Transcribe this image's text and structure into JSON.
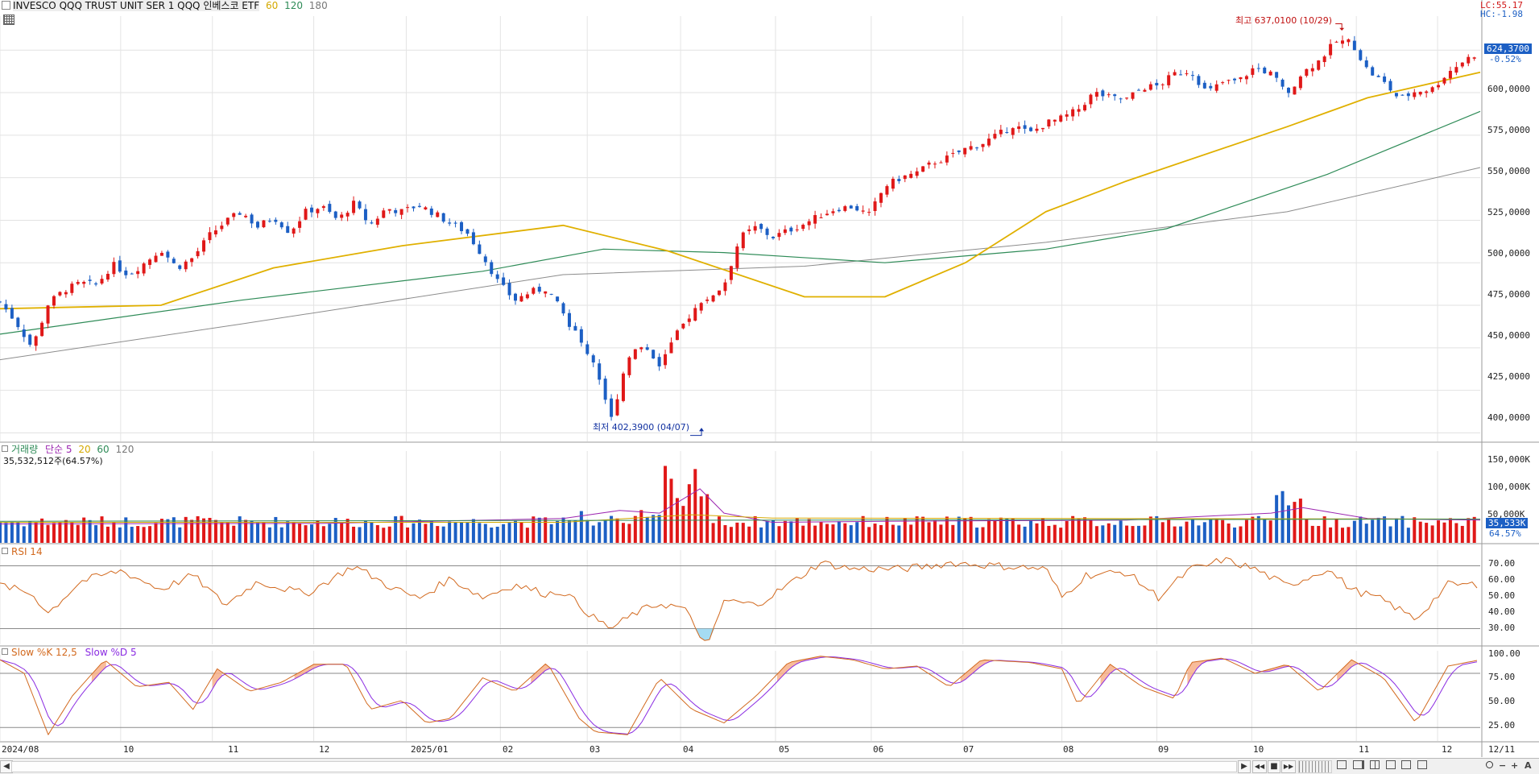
{
  "header": {
    "symbol": "INVESCO QQQ TRUST UNIT SER 1  QQQ 인베스코 ETF",
    "ma_60": "60",
    "ma_120": "120",
    "ma_180": "180",
    "lc": "LC:55.17",
    "hc": "HC:-1.98"
  },
  "price_panel": {
    "high_label": "최고 637,0100 (10/29)",
    "low_label": "최저 402,3900 (04/07)",
    "current_price": "624,3700",
    "current_change": "-0.52%",
    "y_ticks": [
      "600,0000",
      "575,0000",
      "550,0000",
      "525,0000",
      "500,0000",
      "475,0000",
      "450,0000",
      "425,0000",
      "400,0000"
    ],
    "colors": {
      "up": "#e01818",
      "down": "#1c5fc4",
      "ma60": "#e0b000",
      "ma120": "#2e8b57",
      "ma180": "#8c8c8c"
    }
  },
  "volume_panel": {
    "title": "거래량",
    "ma_label": "단순 5",
    "ma20": "20",
    "ma60": "60",
    "ma120": "120",
    "value_text": "35,532,512주(64.57%)",
    "y_ticks": [
      "150,000K",
      "100,000K",
      "50,000K"
    ],
    "current_flag": "35,533K",
    "current_pct": "64.57%"
  },
  "rsi_panel": {
    "title": "RSI 14",
    "y_ticks": [
      "70.00",
      "60.00",
      "50.00",
      "40.00",
      "30.00"
    ]
  },
  "stoch_panel": {
    "title_k": "Slow %K 12,5",
    "title_d": "Slow %D 5",
    "y_ticks": [
      "100.00",
      "75.00",
      "50.00",
      "25.00"
    ]
  },
  "x_axis": {
    "labels": [
      "2024/08",
      "10",
      "11",
      "12",
      "2025/01",
      "02",
      "03",
      "04",
      "05",
      "06",
      "07",
      "08",
      "09",
      "10",
      "11",
      "12",
      "12/11"
    ]
  },
  "toolbar": {
    "left_arrow": "◀",
    "right_arrow": "▶",
    "play": "▶",
    "rewind": "◀◀",
    "stop": "■",
    "forward": "▶▶",
    "zoom_out": "−",
    "zoom_in": "+",
    "auto": "A",
    "search_icon": "search-icon"
  },
  "chart_data": {
    "type": "candlestick",
    "date_range": [
      "2024/08",
      "12/11"
    ],
    "price_range": [
      395,
      645
    ],
    "high": {
      "value": 637.01,
      "date": "10/29"
    },
    "low": {
      "value": 402.39,
      "date": "04/07"
    },
    "last_close": 624.37,
    "close_path": [
      [
        0,
        477
      ],
      [
        20,
        465
      ],
      [
        40,
        450
      ],
      [
        60,
        476
      ],
      [
        80,
        484
      ],
      [
        100,
        488
      ],
      [
        120,
        487
      ],
      [
        140,
        499
      ],
      [
        160,
        493
      ],
      [
        180,
        500
      ],
      [
        200,
        508
      ],
      [
        220,
        497
      ],
      [
        240,
        503
      ],
      [
        260,
        516
      ],
      [
        280,
        524
      ],
      [
        300,
        530
      ],
      [
        320,
        521
      ],
      [
        340,
        527
      ],
      [
        360,
        518
      ],
      [
        380,
        530
      ],
      [
        400,
        533
      ],
      [
        420,
        525
      ],
      [
        440,
        535
      ],
      [
        460,
        522
      ],
      [
        480,
        532
      ],
      [
        500,
        530
      ],
      [
        520,
        534
      ],
      [
        540,
        529
      ],
      [
        560,
        523
      ],
      [
        580,
        518
      ],
      [
        600,
        504
      ],
      [
        620,
        488
      ],
      [
        640,
        478
      ],
      [
        660,
        483
      ],
      [
        680,
        485
      ],
      [
        700,
        470
      ],
      [
        720,
        455
      ],
      [
        740,
        440
      ],
      [
        760,
        408
      ],
      [
        780,
        445
      ],
      [
        800,
        452
      ],
      [
        820,
        440
      ],
      [
        840,
        457
      ],
      [
        860,
        471
      ],
      [
        880,
        479
      ],
      [
        900,
        487
      ],
      [
        920,
        515
      ],
      [
        940,
        521
      ],
      [
        960,
        515
      ],
      [
        980,
        519
      ],
      [
        1000,
        523
      ],
      [
        1020,
        528
      ],
      [
        1040,
        532
      ],
      [
        1060,
        533
      ],
      [
        1080,
        528
      ],
      [
        1100,
        545
      ],
      [
        1120,
        550
      ],
      [
        1140,
        553
      ],
      [
        1160,
        559
      ],
      [
        1180,
        562
      ],
      [
        1200,
        567
      ],
      [
        1220,
        570
      ],
      [
        1240,
        575
      ],
      [
        1260,
        581
      ],
      [
        1280,
        576
      ],
      [
        1300,
        582
      ],
      [
        1320,
        585
      ],
      [
        1340,
        590
      ],
      [
        1360,
        600
      ],
      [
        1380,
        597
      ],
      [
        1400,
        596
      ],
      [
        1420,
        603
      ],
      [
        1440,
        604
      ],
      [
        1460,
        611
      ],
      [
        1480,
        613
      ],
      [
        1500,
        600
      ],
      [
        1520,
        606
      ],
      [
        1540,
        607
      ],
      [
        1560,
        615
      ],
      [
        1580,
        611
      ],
      [
        1600,
        600
      ],
      [
        1620,
        612
      ],
      [
        1640,
        619
      ],
      [
        1660,
        630
      ],
      [
        1680,
        630
      ],
      [
        1700,
        613
      ],
      [
        1720,
        606
      ],
      [
        1740,
        596
      ],
      [
        1760,
        601
      ],
      [
        1780,
        602
      ],
      [
        1800,
        612
      ],
      [
        1820,
        619
      ],
      [
        1840,
        624
      ]
    ],
    "ma60_path": [
      [
        0,
        473
      ],
      [
        200,
        475
      ],
      [
        340,
        497
      ],
      [
        500,
        510
      ],
      [
        700,
        522
      ],
      [
        830,
        507
      ],
      [
        1000,
        480
      ],
      [
        1100,
        480
      ],
      [
        1200,
        500
      ],
      [
        1300,
        530
      ],
      [
        1400,
        548
      ],
      [
        1600,
        580
      ],
      [
        1700,
        597
      ],
      [
        1840,
        612
      ]
    ],
    "ma120_path": [
      [
        0,
        458
      ],
      [
        300,
        478
      ],
      [
        600,
        495
      ],
      [
        750,
        508
      ],
      [
        900,
        506
      ],
      [
        1100,
        500
      ],
      [
        1300,
        508
      ],
      [
        1450,
        520
      ],
      [
        1650,
        552
      ],
      [
        1840,
        589
      ]
    ],
    "ma180_path": [
      [
        0,
        443
      ],
      [
        300,
        464
      ],
      [
        700,
        493
      ],
      [
        1000,
        498
      ],
      [
        1300,
        512
      ],
      [
        1600,
        530
      ],
      [
        1840,
        556
      ]
    ],
    "rsi_path": [
      [
        0,
        58
      ],
      [
        40,
        52
      ],
      [
        60,
        40
      ],
      [
        100,
        60
      ],
      [
        150,
        67
      ],
      [
        200,
        55
      ],
      [
        240,
        64
      ],
      [
        280,
        45
      ],
      [
        320,
        60
      ],
      [
        380,
        52
      ],
      [
        440,
        70
      ],
      [
        480,
        58
      ],
      [
        520,
        49
      ],
      [
        560,
        62
      ],
      [
        600,
        50
      ],
      [
        640,
        58
      ],
      [
        680,
        52
      ],
      [
        700,
        54
      ],
      [
        720,
        45
      ],
      [
        740,
        36
      ],
      [
        760,
        30
      ],
      [
        790,
        40
      ],
      [
        820,
        46
      ],
      [
        850,
        43
      ],
      [
        880,
        18
      ],
      [
        900,
        48
      ],
      [
        940,
        45
      ],
      [
        980,
        58
      ],
      [
        1020,
        72
      ],
      [
        1060,
        68
      ],
      [
        1120,
        68
      ],
      [
        1160,
        70
      ],
      [
        1180,
        72
      ],
      [
        1240,
        70
      ],
      [
        1300,
        68
      ],
      [
        1320,
        50
      ],
      [
        1350,
        64
      ],
      [
        1400,
        66
      ],
      [
        1440,
        50
      ],
      [
        1480,
        68
      ],
      [
        1500,
        70
      ],
      [
        1520,
        74
      ],
      [
        1560,
        68
      ],
      [
        1600,
        57
      ],
      [
        1650,
        68
      ],
      [
        1680,
        55
      ],
      [
        1720,
        48
      ],
      [
        1760,
        36
      ],
      [
        1800,
        58
      ],
      [
        1840,
        58
      ]
    ],
    "stoch_k_path": [
      [
        0,
        95
      ],
      [
        30,
        80
      ],
      [
        60,
        12
      ],
      [
        90,
        55
      ],
      [
        130,
        95
      ],
      [
        170,
        65
      ],
      [
        210,
        70
      ],
      [
        240,
        40
      ],
      [
        270,
        85
      ],
      [
        310,
        60
      ],
      [
        350,
        70
      ],
      [
        390,
        90
      ],
      [
        430,
        90
      ],
      [
        460,
        40
      ],
      [
        500,
        50
      ],
      [
        530,
        25
      ],
      [
        560,
        30
      ],
      [
        600,
        75
      ],
      [
        640,
        60
      ],
      [
        680,
        92
      ],
      [
        720,
        30
      ],
      [
        740,
        15
      ],
      [
        780,
        12
      ],
      [
        820,
        75
      ],
      [
        860,
        40
      ],
      [
        900,
        25
      ],
      [
        940,
        55
      ],
      [
        980,
        92
      ],
      [
        1020,
        99
      ],
      [
        1060,
        95
      ],
      [
        1100,
        85
      ],
      [
        1140,
        88
      ],
      [
        1180,
        65
      ],
      [
        1220,
        95
      ],
      [
        1280,
        92
      ],
      [
        1320,
        85
      ],
      [
        1340,
        45
      ],
      [
        1380,
        90
      ],
      [
        1420,
        65
      ],
      [
        1460,
        52
      ],
      [
        1480,
        92
      ],
      [
        1520,
        97
      ],
      [
        1560,
        80
      ],
      [
        1600,
        90
      ],
      [
        1640,
        60
      ],
      [
        1680,
        95
      ],
      [
        1720,
        75
      ],
      [
        1760,
        25
      ],
      [
        1800,
        88
      ],
      [
        1840,
        95
      ]
    ]
  }
}
